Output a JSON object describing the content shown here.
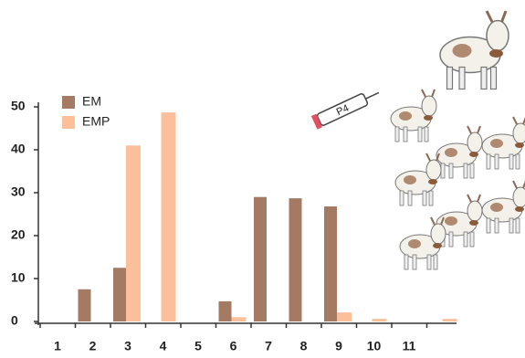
{
  "chart_data": {
    "type": "bar",
    "categories": [
      "1",
      "2",
      "3",
      "4",
      "5",
      "6",
      "7",
      "8",
      "9",
      "10",
      "11",
      null
    ],
    "series": [
      {
        "name": "EM",
        "color": "#a47a62",
        "values": [
          0,
          7.5,
          12.5,
          0,
          0,
          4.7,
          29,
          28.7,
          26.8,
          0,
          0,
          0
        ]
      },
      {
        "name": "EMP",
        "color": "#fbbf99",
        "values": [
          0,
          0,
          41,
          48.7,
          0,
          1,
          0,
          0,
          2.1,
          0.6,
          0,
          0.6
        ]
      }
    ],
    "ylim": [
      0,
      50
    ],
    "yticks": [
      0,
      10,
      20,
      30,
      40,
      50
    ],
    "legend": "top-left",
    "syringe_label": "P4"
  }
}
